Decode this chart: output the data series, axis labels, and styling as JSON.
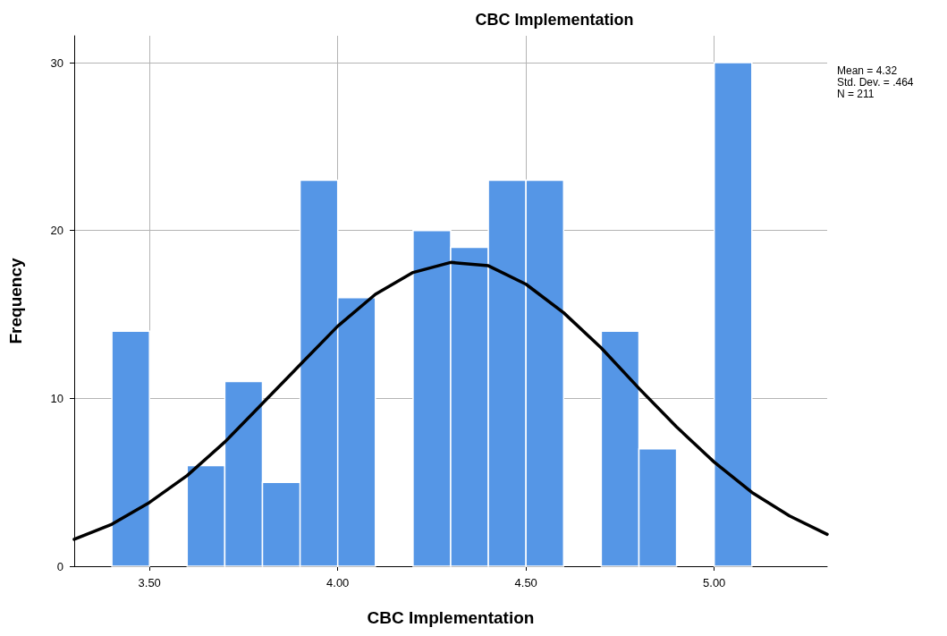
{
  "chart_data": {
    "type": "histogram",
    "title": "CBC Implementation",
    "xlabel": "CBC Implementation",
    "ylabel": "Frequency",
    "bins": [
      3.4,
      3.5,
      3.6,
      3.7,
      3.8,
      3.9,
      4.0,
      4.1,
      4.2,
      4.3,
      4.4,
      4.5,
      4.6,
      4.7,
      4.8,
      4.9,
      5.0,
      5.1
    ],
    "values": [
      14,
      0,
      6,
      11,
      5,
      23,
      16,
      0,
      20,
      19,
      23,
      23,
      0,
      14,
      7,
      0,
      30
    ],
    "color": "#5596e6",
    "series": [
      {
        "type": "line",
        "color": "#000000",
        "x": [
          3.3,
          3.4,
          3.5,
          3.6,
          3.7,
          3.8,
          3.9,
          4.0,
          4.1,
          4.2,
          4.3,
          4.4,
          4.5,
          4.6,
          4.7,
          4.8,
          4.9,
          5.0,
          5.1,
          5.2,
          5.3
        ],
        "values": [
          1.6,
          2.5,
          3.8,
          5.4,
          7.4,
          9.7,
          12.0,
          14.3,
          16.2,
          17.5,
          18.1,
          17.9,
          16.8,
          15.1,
          13.0,
          10.6,
          8.3,
          6.2,
          4.4,
          3.0,
          1.9
        ]
      }
    ],
    "xlim": [
      3.3,
      5.3
    ],
    "xticks": [
      {
        "value": 3.5,
        "label": "3.50"
      },
      {
        "value": 4.0,
        "label": "4.00"
      },
      {
        "value": 4.5,
        "label": "4.50"
      },
      {
        "value": 5.0,
        "label": "5.00"
      }
    ],
    "ylim": [
      0,
      31.6
    ],
    "yticks": [
      0,
      10,
      20,
      30
    ],
    "grid": true,
    "marker": "none",
    "line_style": "solid",
    "annotations": [
      "Mean = 4.32",
      "Std. Dev. = .464",
      "N = 211"
    ]
  }
}
